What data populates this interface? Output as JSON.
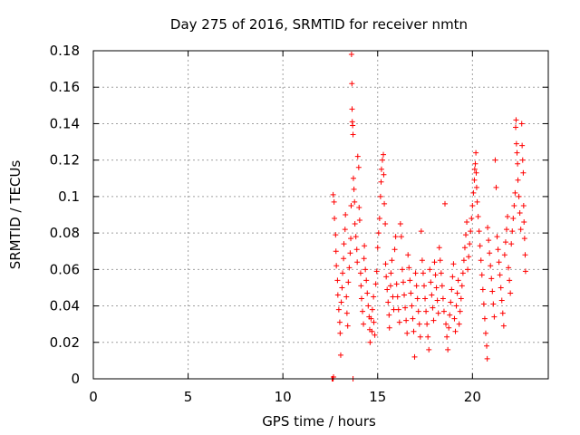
{
  "chart_data": {
    "type": "scatter",
    "title": "Day 275 of 2016, SRMTID for receiver nmtn",
    "xlabel": "GPS time / hours",
    "ylabel": "SRMTID / TECUs",
    "xlim": [
      0,
      24
    ],
    "ylim": [
      0,
      0.18
    ],
    "xticks": [
      0,
      5,
      10,
      15,
      20
    ],
    "xtick_labels": [
      "0",
      "5",
      "10",
      "15",
      "20"
    ],
    "yticks": [
      0,
      0.02,
      0.04,
      0.06,
      0.08,
      0.1,
      0.12,
      0.14,
      0.16,
      0.18
    ],
    "ytick_labels": [
      "0",
      "0.02",
      "0.04",
      "0.06",
      "0.08",
      "0.1",
      "0.12",
      "0.14",
      "0.16",
      "0.18"
    ],
    "grid": true,
    "marker": "+",
    "color": "#ff0000",
    "series": [
      {
        "points": [
          [
            12.6,
            0.0
          ],
          [
            12.62,
            0.0
          ],
          [
            12.65,
            0.0
          ],
          [
            12.67,
            0.001
          ],
          [
            13.7,
            0.0
          ],
          [
            12.65,
            0.101
          ],
          [
            12.7,
            0.097
          ],
          [
            12.72,
            0.088
          ],
          [
            12.78,
            0.079
          ],
          [
            12.8,
            0.07
          ],
          [
            12.82,
            0.062
          ],
          [
            12.88,
            0.054
          ],
          [
            12.9,
            0.046
          ],
          [
            12.95,
            0.038
          ],
          [
            13.0,
            0.031
          ],
          [
            13.02,
            0.025
          ],
          [
            13.05,
            0.013
          ],
          [
            13.08,
            0.042
          ],
          [
            13.12,
            0.05
          ],
          [
            13.15,
            0.058
          ],
          [
            13.2,
            0.066
          ],
          [
            13.22,
            0.074
          ],
          [
            13.28,
            0.082
          ],
          [
            13.3,
            0.09
          ],
          [
            13.35,
            0.045
          ],
          [
            13.38,
            0.036
          ],
          [
            13.42,
            0.029
          ],
          [
            13.45,
            0.053
          ],
          [
            13.5,
            0.061
          ],
          [
            13.55,
            0.069
          ],
          [
            13.58,
            0.077
          ],
          [
            13.6,
            0.095
          ],
          [
            13.62,
            0.178
          ],
          [
            13.64,
            0.162
          ],
          [
            13.65,
            0.148
          ],
          [
            13.66,
            0.141
          ],
          [
            13.68,
            0.139
          ],
          [
            13.7,
            0.134
          ],
          [
            13.72,
            0.11
          ],
          [
            13.75,
            0.104
          ],
          [
            13.78,
            0.097
          ],
          [
            13.8,
            0.085
          ],
          [
            13.85,
            0.078
          ],
          [
            13.9,
            0.071
          ],
          [
            13.92,
            0.064
          ],
          [
            13.95,
            0.122
          ],
          [
            14.0,
            0.116
          ],
          [
            14.02,
            0.094
          ],
          [
            14.05,
            0.087
          ],
          [
            14.1,
            0.058
          ],
          [
            14.12,
            0.051
          ],
          [
            14.15,
            0.044
          ],
          [
            14.2,
            0.037
          ],
          [
            14.25,
            0.03
          ],
          [
            14.28,
            0.066
          ],
          [
            14.3,
            0.073
          ],
          [
            14.35,
            0.06
          ],
          [
            14.4,
            0.054
          ],
          [
            14.45,
            0.047
          ],
          [
            14.5,
            0.04
          ],
          [
            14.55,
            0.034
          ],
          [
            14.58,
            0.027
          ],
          [
            14.6,
            0.02
          ],
          [
            14.65,
            0.033
          ],
          [
            14.7,
            0.026
          ],
          [
            14.72,
            0.038
          ],
          [
            14.78,
            0.045
          ],
          [
            14.8,
            0.031
          ],
          [
            14.85,
            0.024
          ],
          [
            14.9,
            0.052
          ],
          [
            14.95,
            0.059
          ],
          [
            15.0,
            0.072
          ],
          [
            15.05,
            0.08
          ],
          [
            15.1,
            0.088
          ],
          [
            15.15,
            0.1
          ],
          [
            15.18,
            0.108
          ],
          [
            15.2,
            0.115
          ],
          [
            15.25,
            0.12
          ],
          [
            15.3,
            0.123
          ],
          [
            15.32,
            0.112
          ],
          [
            15.35,
            0.096
          ],
          [
            15.4,
            0.085
          ],
          [
            15.42,
            0.063
          ],
          [
            15.45,
            0.056
          ],
          [
            15.5,
            0.049
          ],
          [
            15.55,
            0.042
          ],
          [
            15.6,
            0.035
          ],
          [
            15.62,
            0.028
          ],
          [
            15.68,
            0.051
          ],
          [
            15.7,
            0.058
          ],
          [
            15.75,
            0.065
          ],
          [
            15.8,
            0.045
          ],
          [
            15.85,
            0.038
          ],
          [
            15.9,
            0.071
          ],
          [
            15.95,
            0.078
          ],
          [
            16.0,
            0.052
          ],
          [
            16.05,
            0.045
          ],
          [
            16.1,
            0.038
          ],
          [
            16.15,
            0.031
          ],
          [
            16.2,
            0.085
          ],
          [
            16.25,
            0.078
          ],
          [
            16.3,
            0.06
          ],
          [
            16.35,
            0.053
          ],
          [
            16.4,
            0.046
          ],
          [
            16.45,
            0.039
          ],
          [
            16.5,
            0.032
          ],
          [
            16.55,
            0.025
          ],
          [
            16.6,
            0.068
          ],
          [
            16.65,
            0.061
          ],
          [
            16.7,
            0.054
          ],
          [
            16.75,
            0.047
          ],
          [
            16.8,
            0.04
          ],
          [
            16.85,
            0.033
          ],
          [
            16.9,
            0.026
          ],
          [
            16.95,
            0.012
          ],
          [
            17.0,
            0.058
          ],
          [
            17.05,
            0.051
          ],
          [
            17.1,
            0.044
          ],
          [
            17.15,
            0.037
          ],
          [
            17.2,
            0.03
          ],
          [
            17.25,
            0.023
          ],
          [
            17.3,
            0.081
          ],
          [
            17.35,
            0.065
          ],
          [
            17.4,
            0.058
          ],
          [
            17.45,
            0.051
          ],
          [
            17.5,
            0.044
          ],
          [
            17.55,
            0.037
          ],
          [
            17.6,
            0.03
          ],
          [
            17.65,
            0.023
          ],
          [
            17.7,
            0.016
          ],
          [
            17.75,
            0.06
          ],
          [
            17.8,
            0.053
          ],
          [
            17.85,
            0.046
          ],
          [
            17.9,
            0.039
          ],
          [
            17.95,
            0.032
          ],
          [
            18.0,
            0.064
          ],
          [
            18.05,
            0.057
          ],
          [
            18.1,
            0.05
          ],
          [
            18.15,
            0.043
          ],
          [
            18.2,
            0.036
          ],
          [
            18.25,
            0.072
          ],
          [
            18.3,
            0.065
          ],
          [
            18.35,
            0.058
          ],
          [
            18.4,
            0.051
          ],
          [
            18.45,
            0.044
          ],
          [
            18.5,
            0.037
          ],
          [
            18.55,
            0.096
          ],
          [
            18.6,
            0.03
          ],
          [
            18.65,
            0.023
          ],
          [
            18.7,
            0.016
          ],
          [
            18.75,
            0.028
          ],
          [
            18.8,
            0.035
          ],
          [
            18.85,
            0.042
          ],
          [
            18.9,
            0.049
          ],
          [
            18.95,
            0.056
          ],
          [
            19.0,
            0.063
          ],
          [
            19.05,
            0.033
          ],
          [
            19.1,
            0.026
          ],
          [
            19.15,
            0.04
          ],
          [
            19.2,
            0.047
          ],
          [
            19.25,
            0.054
          ],
          [
            19.3,
            0.03
          ],
          [
            19.35,
            0.037
          ],
          [
            19.4,
            0.044
          ],
          [
            19.45,
            0.051
          ],
          [
            19.5,
            0.058
          ],
          [
            19.55,
            0.065
          ],
          [
            19.6,
            0.072
          ],
          [
            19.65,
            0.079
          ],
          [
            19.7,
            0.086
          ],
          [
            19.75,
            0.06
          ],
          [
            19.8,
            0.067
          ],
          [
            19.85,
            0.074
          ],
          [
            19.9,
            0.081
          ],
          [
            19.95,
            0.088
          ],
          [
            20.0,
            0.095
          ],
          [
            20.05,
            0.102
          ],
          [
            20.1,
            0.109
          ],
          [
            20.12,
            0.115
          ],
          [
            20.15,
            0.118
          ],
          [
            20.18,
            0.124
          ],
          [
            20.2,
            0.113
          ],
          [
            20.22,
            0.105
          ],
          [
            20.25,
            0.097
          ],
          [
            20.3,
            0.089
          ],
          [
            20.35,
            0.081
          ],
          [
            20.4,
            0.073
          ],
          [
            20.45,
            0.065
          ],
          [
            20.5,
            0.057
          ],
          [
            20.55,
            0.049
          ],
          [
            20.6,
            0.041
          ],
          [
            20.65,
            0.033
          ],
          [
            20.7,
            0.025
          ],
          [
            20.75,
            0.018
          ],
          [
            20.78,
            0.011
          ],
          [
            20.8,
            0.083
          ],
          [
            20.85,
            0.076
          ],
          [
            20.9,
            0.069
          ],
          [
            20.95,
            0.062
          ],
          [
            21.0,
            0.055
          ],
          [
            21.05,
            0.048
          ],
          [
            21.1,
            0.041
          ],
          [
            21.15,
            0.034
          ],
          [
            21.2,
            0.12
          ],
          [
            21.25,
            0.105
          ],
          [
            21.3,
            0.078
          ],
          [
            21.35,
            0.071
          ],
          [
            21.4,
            0.064
          ],
          [
            21.45,
            0.057
          ],
          [
            21.5,
            0.05
          ],
          [
            21.55,
            0.043
          ],
          [
            21.6,
            0.036
          ],
          [
            21.65,
            0.029
          ],
          [
            21.7,
            0.068
          ],
          [
            21.75,
            0.075
          ],
          [
            21.8,
            0.082
          ],
          [
            21.85,
            0.089
          ],
          [
            21.9,
            0.061
          ],
          [
            21.95,
            0.054
          ],
          [
            22.0,
            0.047
          ],
          [
            22.05,
            0.074
          ],
          [
            22.1,
            0.081
          ],
          [
            22.15,
            0.088
          ],
          [
            22.2,
            0.095
          ],
          [
            22.25,
            0.102
          ],
          [
            22.28,
            0.138
          ],
          [
            22.3,
            0.142
          ],
          [
            22.32,
            0.129
          ],
          [
            22.35,
            0.124
          ],
          [
            22.38,
            0.118
          ],
          [
            22.4,
            0.109
          ],
          [
            22.45,
            0.1
          ],
          [
            22.5,
            0.091
          ],
          [
            22.55,
            0.082
          ],
          [
            22.6,
            0.14
          ],
          [
            22.62,
            0.128
          ],
          [
            22.65,
            0.12
          ],
          [
            22.68,
            0.113
          ],
          [
            22.7,
            0.095
          ],
          [
            22.72,
            0.086
          ],
          [
            22.75,
            0.077
          ],
          [
            22.78,
            0.068
          ],
          [
            22.8,
            0.059
          ]
        ]
      }
    ]
  }
}
